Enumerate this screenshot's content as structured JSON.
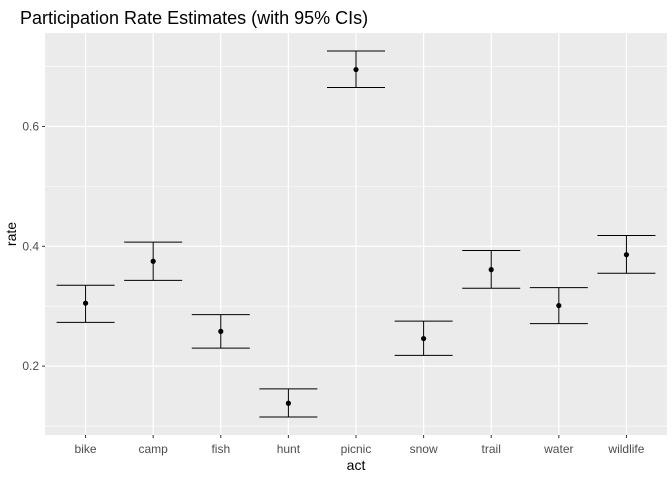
{
  "chart_data": {
    "type": "errorbar",
    "title": "Participation Rate Estimates (with 95% CIs)",
    "xlabel": "act",
    "ylabel": "rate",
    "categories": [
      "bike",
      "camp",
      "fish",
      "hunt",
      "picnic",
      "snow",
      "trail",
      "water",
      "wildlife"
    ],
    "series": [
      {
        "values": [
          0.305,
          0.375,
          0.258,
          0.138,
          0.695,
          0.246,
          0.361,
          0.301,
          0.386
        ],
        "lower": [
          0.273,
          0.343,
          0.23,
          0.115,
          0.665,
          0.218,
          0.33,
          0.271,
          0.355
        ],
        "upper": [
          0.335,
          0.407,
          0.286,
          0.162,
          0.726,
          0.275,
          0.393,
          0.331,
          0.418
        ]
      }
    ],
    "yticks": [
      0.2,
      0.4,
      0.6
    ],
    "ytick_labels": [
      "0.2",
      "0.4",
      "0.6"
    ],
    "ylim": [
      0.085,
      0.756
    ],
    "grid": true,
    "background": "#ebebeb",
    "gridline_color": "#ffffff",
    "mark_color": "#000000"
  }
}
